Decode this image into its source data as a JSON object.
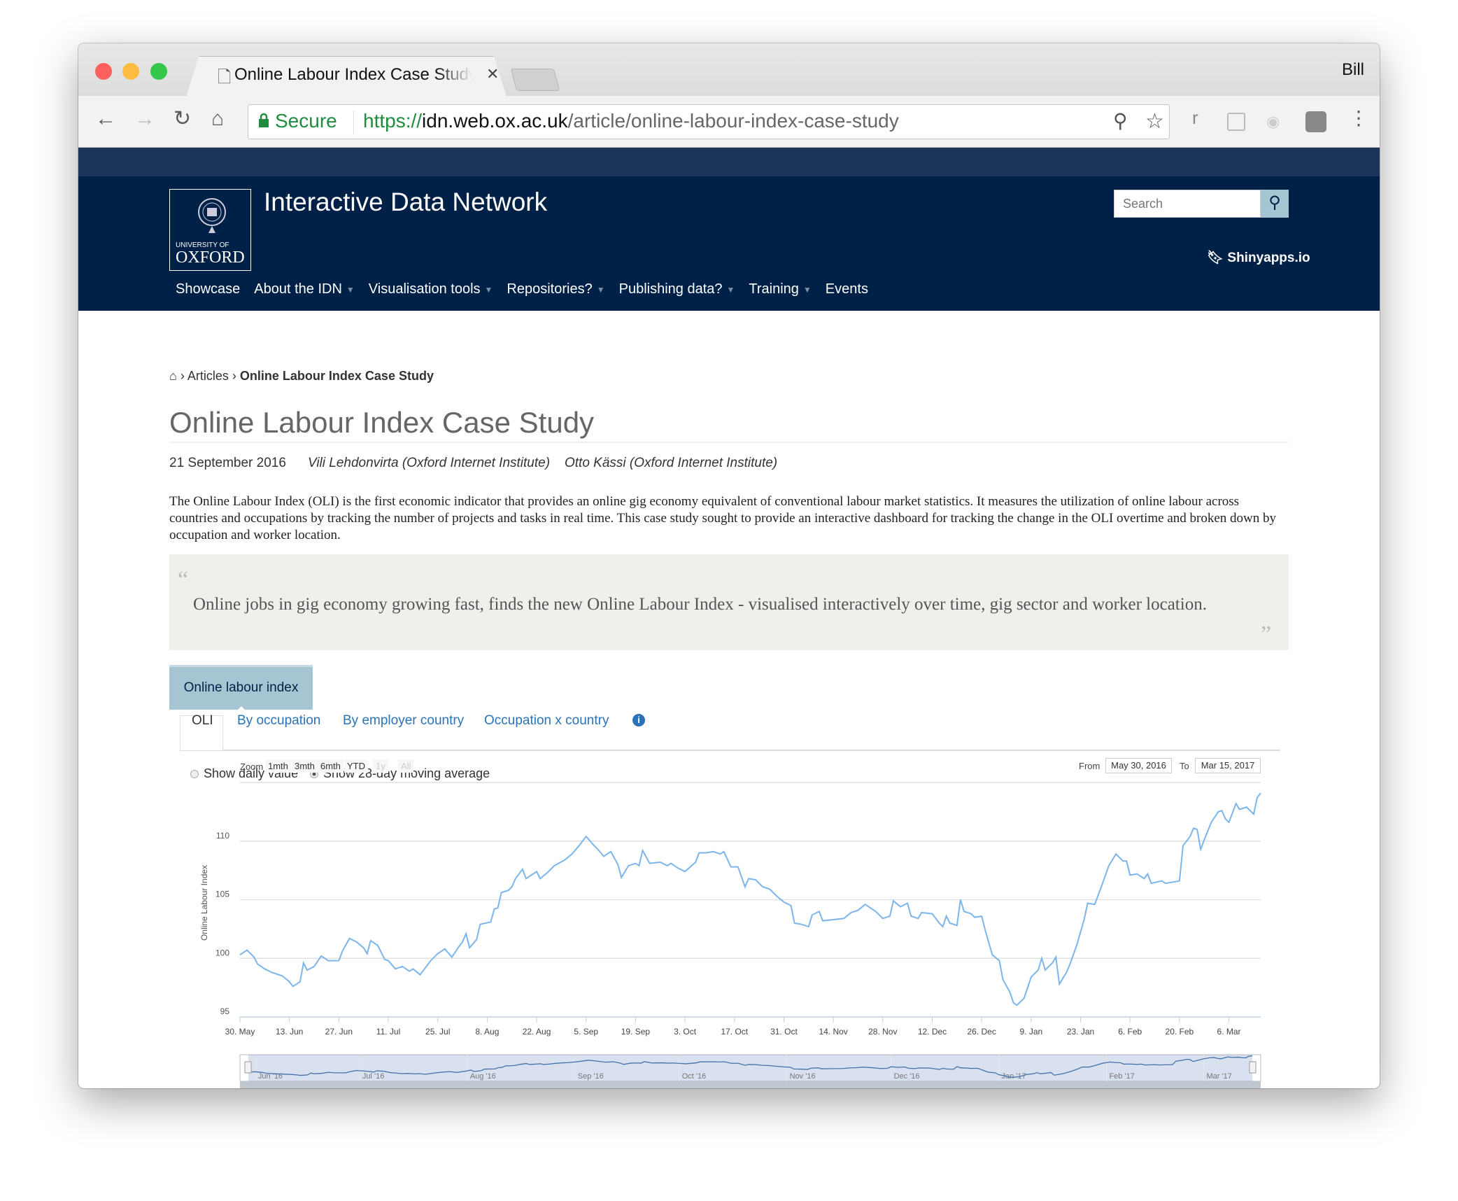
{
  "browser": {
    "tab_title": "Online Labour Index Case Study",
    "user": "Bill",
    "secure_label": "Secure",
    "url_scheme": "https://",
    "url_host": "idn.web.ox.ac.uk",
    "url_path": "/article/online-labour-index-case-study",
    "ext_r": "r"
  },
  "site": {
    "title": "Interactive Data Network",
    "logo_small": "UNIVERSITY OF",
    "logo_big": "OXFORD",
    "search_placeholder": "Search",
    "shiny_link": "Shinyapps.io",
    "nav": [
      {
        "label": "Showcase",
        "dropdown": false
      },
      {
        "label": "About the IDN",
        "dropdown": true
      },
      {
        "label": "Visualisation tools",
        "dropdown": true
      },
      {
        "label": "Repositories?",
        "dropdown": true
      },
      {
        "label": "Publishing data?",
        "dropdown": true
      },
      {
        "label": "Training",
        "dropdown": true
      },
      {
        "label": "Events",
        "dropdown": false
      }
    ]
  },
  "breadcrumb": {
    "articles": "Articles",
    "current": "Online Labour Index Case Study"
  },
  "article": {
    "title": "Online Labour Index Case Study",
    "date": "21 September 2016",
    "author1": "Vili Lehdonvirta (Oxford Internet Institute)",
    "author2": "Otto Kässi (Oxford Internet Institute)",
    "intro": "The Online Labour Index (OLI) is the first economic indicator that provides an online gig economy equivalent of conventional labour market statistics. It measures the utilization of online labour across countries and occupations by tracking the number of projects and tasks in real time. This case study sought to provide an interactive dashboard for tracking the change in the OLI overtime and broken down by occupation and worker location.",
    "quote": "Online jobs in gig economy growing fast, finds the new Online Labour Index - visualised interactively over time, gig sector and worker location."
  },
  "dashboard": {
    "main_tab": "Online labour index",
    "tabs": [
      "OLI",
      "By occupation",
      "By employer country",
      "Occupation x country"
    ],
    "active_tab": "OLI",
    "radio_daily": "Show daily value",
    "radio_avg": "Show 28-day moving average",
    "selected_radio": "avg",
    "zoom_label": "Zoom",
    "zoom_buttons": [
      "1mth",
      "3mth",
      "6mth",
      "YTD",
      "1y",
      "All"
    ],
    "from_label": "From",
    "from_value": "May 30, 2016",
    "to_label": "To",
    "to_value": "Mar 15, 2017"
  },
  "chart_data": {
    "type": "line",
    "ylabel": "Online Labour Index",
    "ylim": [
      95,
      115
    ],
    "yticks": [
      95,
      100,
      105,
      110
    ],
    "grid": true,
    "color": "#7cb5ec",
    "xticks": [
      [
        "2016-05-30",
        "30. May"
      ],
      [
        "2016-06-13",
        "13. Jun"
      ],
      [
        "2016-06-27",
        "27. Jun"
      ],
      [
        "2016-07-11",
        "11. Jul"
      ],
      [
        "2016-07-25",
        "25. Jul"
      ],
      [
        "2016-08-08",
        "8. Aug"
      ],
      [
        "2016-08-22",
        "22. Aug"
      ],
      [
        "2016-09-05",
        "5. Sep"
      ],
      [
        "2016-09-19",
        "19. Sep"
      ],
      [
        "2016-10-03",
        "3. Oct"
      ],
      [
        "2016-10-17",
        "17. Oct"
      ],
      [
        "2016-10-31",
        "31. Oct"
      ],
      [
        "2016-11-14",
        "14. Nov"
      ],
      [
        "2016-11-28",
        "28. Nov"
      ],
      [
        "2016-12-12",
        "12. Dec"
      ],
      [
        "2016-12-26",
        "26. Dec"
      ],
      [
        "2017-01-09",
        "9. Jan"
      ],
      [
        "2017-01-23",
        "23. Jan"
      ],
      [
        "2017-02-06",
        "6. Feb"
      ],
      [
        "2017-02-20",
        "20. Feb"
      ],
      [
        "2017-03-06",
        "6. Mar"
      ]
    ],
    "navigator_labels": [
      [
        "2016-06-01",
        "Jun '16"
      ],
      [
        "2016-07-01",
        "Jul '16"
      ],
      [
        "2016-08-01",
        "Aug '16"
      ],
      [
        "2016-09-01",
        "Sep '16"
      ],
      [
        "2016-10-01",
        "Oct '16"
      ],
      [
        "2016-11-01",
        "Nov '16"
      ],
      [
        "2016-12-01",
        "Dec '16"
      ],
      [
        "2017-01-01",
        "Jan '17"
      ],
      [
        "2017-02-01",
        "Feb '17"
      ],
      [
        "2017-03-01",
        "Mar '17"
      ]
    ],
    "series": [
      {
        "points": [
          [
            "2016-05-30",
            100.3
          ],
          [
            "2016-06-01",
            100.7
          ],
          [
            "2016-06-03",
            100.1
          ],
          [
            "2016-06-04",
            99.5
          ],
          [
            "2016-06-06",
            99.1
          ],
          [
            "2016-06-08",
            98.8
          ],
          [
            "2016-06-11",
            98.5
          ],
          [
            "2016-06-13",
            98.0
          ],
          [
            "2016-06-14",
            97.6
          ],
          [
            "2016-06-16",
            98.0
          ],
          [
            "2016-06-17",
            99.6
          ],
          [
            "2016-06-18",
            99.0
          ],
          [
            "2016-06-20",
            99.3
          ],
          [
            "2016-06-22",
            100.2
          ],
          [
            "2016-06-24",
            99.8
          ],
          [
            "2016-06-27",
            99.8
          ],
          [
            "2016-06-28",
            100.6
          ],
          [
            "2016-06-30",
            101.7
          ],
          [
            "2016-07-02",
            101.4
          ],
          [
            "2016-07-04",
            100.9
          ],
          [
            "2016-07-05",
            100.4
          ],
          [
            "2016-07-06",
            101.5
          ],
          [
            "2016-07-08",
            101.1
          ],
          [
            "2016-07-10",
            99.9
          ],
          [
            "2016-07-11",
            99.8
          ],
          [
            "2016-07-13",
            99.1
          ],
          [
            "2016-07-15",
            99.3
          ],
          [
            "2016-07-17",
            98.9
          ],
          [
            "2016-07-18",
            99.1
          ],
          [
            "2016-07-20",
            98.6
          ],
          [
            "2016-07-23",
            99.8
          ],
          [
            "2016-07-25",
            100.4
          ],
          [
            "2016-07-27",
            100.8
          ],
          [
            "2016-07-29",
            100.1
          ],
          [
            "2016-07-31",
            101.0
          ],
          [
            "2016-08-01",
            101.4
          ],
          [
            "2016-08-02",
            102.1
          ],
          [
            "2016-08-03",
            100.9
          ],
          [
            "2016-08-05",
            101.6
          ],
          [
            "2016-08-06",
            102.9
          ],
          [
            "2016-08-09",
            103.1
          ],
          [
            "2016-08-10",
            104.2
          ],
          [
            "2016-08-11",
            104.3
          ],
          [
            "2016-08-12",
            105.6
          ],
          [
            "2016-08-14",
            105.8
          ],
          [
            "2016-08-15",
            106.1
          ],
          [
            "2016-08-16",
            106.8
          ],
          [
            "2016-08-18",
            107.6
          ],
          [
            "2016-08-19",
            106.8
          ],
          [
            "2016-08-22",
            107.4
          ],
          [
            "2016-08-23",
            106.8
          ],
          [
            "2016-08-25",
            107.3
          ],
          [
            "2016-08-27",
            107.9
          ],
          [
            "2016-08-30",
            108.4
          ],
          [
            "2016-09-01",
            108.9
          ],
          [
            "2016-09-03",
            109.6
          ],
          [
            "2016-09-05",
            110.4
          ],
          [
            "2016-09-07",
            109.7
          ],
          [
            "2016-09-08",
            109.4
          ],
          [
            "2016-09-10",
            108.7
          ],
          [
            "2016-09-12",
            109.1
          ],
          [
            "2016-09-14",
            108.0
          ],
          [
            "2016-09-15",
            106.9
          ],
          [
            "2016-09-17",
            107.9
          ],
          [
            "2016-09-19",
            108.1
          ],
          [
            "2016-09-20",
            107.9
          ],
          [
            "2016-09-21",
            109.2
          ],
          [
            "2016-09-23",
            108.1
          ],
          [
            "2016-09-26",
            108.2
          ],
          [
            "2016-09-28",
            107.9
          ],
          [
            "2016-09-29",
            108.1
          ],
          [
            "2016-10-01",
            107.7
          ],
          [
            "2016-10-03",
            107.4
          ],
          [
            "2016-10-06",
            108.2
          ],
          [
            "2016-10-07",
            109.0
          ],
          [
            "2016-10-09",
            109.0
          ],
          [
            "2016-10-11",
            109.1
          ],
          [
            "2016-10-13",
            108.9
          ],
          [
            "2016-10-14",
            109.1
          ],
          [
            "2016-10-16",
            107.8
          ],
          [
            "2016-10-18",
            107.8
          ],
          [
            "2016-10-20",
            106.1
          ],
          [
            "2016-10-21",
            106.8
          ],
          [
            "2016-10-23",
            106.7
          ],
          [
            "2016-10-25",
            106.1
          ],
          [
            "2016-10-27",
            105.9
          ],
          [
            "2016-10-29",
            105.3
          ],
          [
            "2016-10-31",
            104.8
          ],
          [
            "2016-11-02",
            104.5
          ],
          [
            "2016-11-03",
            103.0
          ],
          [
            "2016-11-05",
            102.9
          ],
          [
            "2016-11-07",
            102.7
          ],
          [
            "2016-11-08",
            103.7
          ],
          [
            "2016-11-10",
            104.0
          ],
          [
            "2016-11-11",
            103.2
          ],
          [
            "2016-11-14",
            103.3
          ],
          [
            "2016-11-17",
            103.4
          ],
          [
            "2016-11-19",
            103.9
          ],
          [
            "2016-11-21",
            104.1
          ],
          [
            "2016-11-23",
            104.6
          ],
          [
            "2016-11-26",
            104.0
          ],
          [
            "2016-11-28",
            103.4
          ],
          [
            "2016-11-30",
            103.6
          ],
          [
            "2016-12-01",
            104.9
          ],
          [
            "2016-12-03",
            104.4
          ],
          [
            "2016-12-05",
            104.7
          ],
          [
            "2016-12-06",
            103.6
          ],
          [
            "2016-12-08",
            103.4
          ],
          [
            "2016-12-09",
            103.9
          ],
          [
            "2016-12-12",
            103.8
          ],
          [
            "2016-12-14",
            103.0
          ],
          [
            "2016-12-15",
            102.7
          ],
          [
            "2016-12-16",
            103.6
          ],
          [
            "2016-12-17",
            103.0
          ],
          [
            "2016-12-19",
            102.8
          ],
          [
            "2016-12-20",
            105.0
          ],
          [
            "2016-12-21",
            104.0
          ],
          [
            "2016-12-23",
            103.8
          ],
          [
            "2016-12-24",
            103.5
          ],
          [
            "2016-12-26",
            103.6
          ],
          [
            "2016-12-27",
            102.4
          ],
          [
            "2016-12-29",
            100.3
          ],
          [
            "2016-12-31",
            99.8
          ],
          [
            "2017-01-01",
            98.2
          ],
          [
            "2017-01-03",
            97.1
          ],
          [
            "2017-01-04",
            96.2
          ],
          [
            "2017-01-05",
            96.0
          ],
          [
            "2017-01-07",
            96.6
          ],
          [
            "2017-01-09",
            98.4
          ],
          [
            "2017-01-11",
            99.0
          ],
          [
            "2017-01-12",
            100.0
          ],
          [
            "2017-01-13",
            99.0
          ],
          [
            "2017-01-15",
            99.6
          ],
          [
            "2017-01-16",
            100.1
          ],
          [
            "2017-01-17",
            97.8
          ],
          [
            "2017-01-19",
            98.8
          ],
          [
            "2017-01-20",
            99.5
          ],
          [
            "2017-01-22",
            101.2
          ],
          [
            "2017-01-24",
            103.3
          ],
          [
            "2017-01-25",
            104.7
          ],
          [
            "2017-01-27",
            104.6
          ],
          [
            "2017-01-29",
            106.2
          ],
          [
            "2017-01-31",
            107.9
          ],
          [
            "2017-02-02",
            108.9
          ],
          [
            "2017-02-04",
            108.3
          ],
          [
            "2017-02-05",
            108.3
          ],
          [
            "2017-02-06",
            107.1
          ],
          [
            "2017-02-08",
            107.2
          ],
          [
            "2017-02-10",
            106.8
          ],
          [
            "2017-02-11",
            107.2
          ],
          [
            "2017-02-12",
            106.4
          ],
          [
            "2017-02-15",
            106.6
          ],
          [
            "2017-02-16",
            106.4
          ],
          [
            "2017-02-20",
            106.6
          ],
          [
            "2017-02-21",
            109.6
          ],
          [
            "2017-02-23",
            110.4
          ],
          [
            "2017-02-24",
            111.1
          ],
          [
            "2017-02-25",
            111.0
          ],
          [
            "2017-02-26",
            109.3
          ],
          [
            "2017-02-27",
            110.1
          ],
          [
            "2017-03-01",
            111.6
          ],
          [
            "2017-03-03",
            112.5
          ],
          [
            "2017-03-04",
            112.6
          ],
          [
            "2017-03-05",
            111.9
          ],
          [
            "2017-03-06",
            111.6
          ],
          [
            "2017-03-08",
            113.2
          ],
          [
            "2017-03-09",
            112.7
          ],
          [
            "2017-03-11",
            112.9
          ],
          [
            "2017-03-13",
            112.3
          ],
          [
            "2017-03-14",
            113.7
          ],
          [
            "2017-03-15",
            114.1
          ]
        ]
      }
    ]
  }
}
